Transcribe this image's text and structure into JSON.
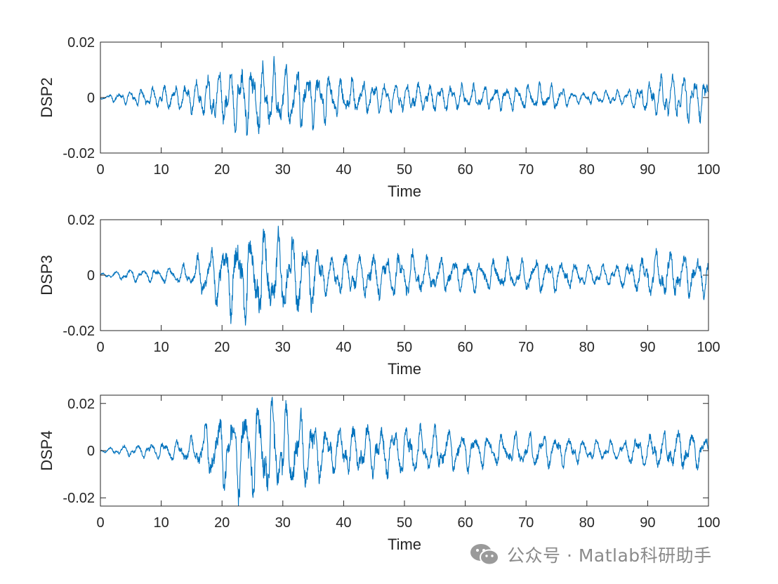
{
  "chart_data": [
    {
      "type": "line",
      "ylabel": "DSP2",
      "xlabel": "Time",
      "xlim": [
        0,
        100
      ],
      "ylim": [
        -0.02,
        0.02
      ],
      "xticks": [
        "0",
        "10",
        "20",
        "30",
        "40",
        "50",
        "60",
        "70",
        "80",
        "90",
        "100"
      ],
      "yticks": [
        "0.02",
        "0",
        "-0.02"
      ],
      "color": "#0072BD",
      "envelope": [
        [
          0,
          0.0006
        ],
        [
          3,
          0.002
        ],
        [
          8,
          0.004
        ],
        [
          14,
          0.0055
        ],
        [
          17,
          0.008
        ],
        [
          20,
          0.011
        ],
        [
          23,
          0.013
        ],
        [
          25,
          0.015
        ],
        [
          28,
          0.013
        ],
        [
          31,
          0.013
        ],
        [
          35,
          0.011
        ],
        [
          40,
          0.0075
        ],
        [
          45,
          0.0065
        ],
        [
          50,
          0.006
        ],
        [
          55,
          0.0055
        ],
        [
          60,
          0.005
        ],
        [
          65,
          0.0045
        ],
        [
          70,
          0.005
        ],
        [
          75,
          0.005
        ],
        [
          78,
          0.0025
        ],
        [
          82,
          0.0025
        ],
        [
          86,
          0.003
        ],
        [
          90,
          0.006
        ],
        [
          93,
          0.009
        ],
        [
          96,
          0.009
        ],
        [
          100,
          0.0085
        ]
      ],
      "freq": 0.55,
      "seed": 11
    },
    {
      "type": "line",
      "ylabel": "DSP3",
      "xlabel": "Time",
      "xlim": [
        0,
        100
      ],
      "ylim": [
        -0.02,
        0.02
      ],
      "xticks": [
        "0",
        "10",
        "20",
        "30",
        "40",
        "50",
        "60",
        "70",
        "80",
        "90",
        "100"
      ],
      "yticks": [
        "0.02",
        "0",
        "-0.02"
      ],
      "color": "#0072BD",
      "envelope": [
        [
          0,
          0.0006
        ],
        [
          5,
          0.0025
        ],
        [
          10,
          0.003
        ],
        [
          15,
          0.0045
        ],
        [
          17,
          0.01
        ],
        [
          20,
          0.013
        ],
        [
          24,
          0.018
        ],
        [
          27,
          0.018
        ],
        [
          31,
          0.017
        ],
        [
          35,
          0.013
        ],
        [
          37,
          0.008
        ],
        [
          42,
          0.0085
        ],
        [
          47,
          0.0085
        ],
        [
          50,
          0.0095
        ],
        [
          55,
          0.007
        ],
        [
          60,
          0.0065
        ],
        [
          65,
          0.006
        ],
        [
          70,
          0.0065
        ],
        [
          75,
          0.0065
        ],
        [
          80,
          0.004
        ],
        [
          85,
          0.0045
        ],
        [
          90,
          0.008
        ],
        [
          93,
          0.01
        ],
        [
          97,
          0.008
        ],
        [
          100,
          0.008
        ]
      ],
      "freq": 0.45,
      "seed": 23
    },
    {
      "type": "line",
      "ylabel": "DSP4",
      "xlabel": "Time",
      "xlim": [
        0,
        100
      ],
      "ylim": [
        -0.0235,
        0.0235
      ],
      "xticks": [
        "0",
        "10",
        "20",
        "30",
        "40",
        "50",
        "60",
        "70",
        "80",
        "90",
        "100"
      ],
      "yticks": [
        "0.02",
        "0",
        "-0.02"
      ],
      "color": "#0072BD",
      "envelope": [
        [
          0,
          0.0007
        ],
        [
          5,
          0.003
        ],
        [
          10,
          0.004
        ],
        [
          15,
          0.006
        ],
        [
          18,
          0.014
        ],
        [
          21,
          0.018
        ],
        [
          24,
          0.022
        ],
        [
          28,
          0.023
        ],
        [
          31,
          0.021
        ],
        [
          35,
          0.016
        ],
        [
          37,
          0.011
        ],
        [
          42,
          0.0115
        ],
        [
          46,
          0.0125
        ],
        [
          50,
          0.012
        ],
        [
          55,
          0.0105
        ],
        [
          60,
          0.009
        ],
        [
          65,
          0.007
        ],
        [
          70,
          0.008
        ],
        [
          75,
          0.0075
        ],
        [
          80,
          0.005
        ],
        [
          85,
          0.0045
        ],
        [
          90,
          0.0075
        ],
        [
          93,
          0.009
        ],
        [
          97,
          0.009
        ],
        [
          100,
          0.009
        ]
      ],
      "freq": 0.45,
      "seed": 37
    }
  ],
  "watermark": {
    "text": "公众号 · Matlab科研助手",
    "icon": "wechat-icon"
  }
}
